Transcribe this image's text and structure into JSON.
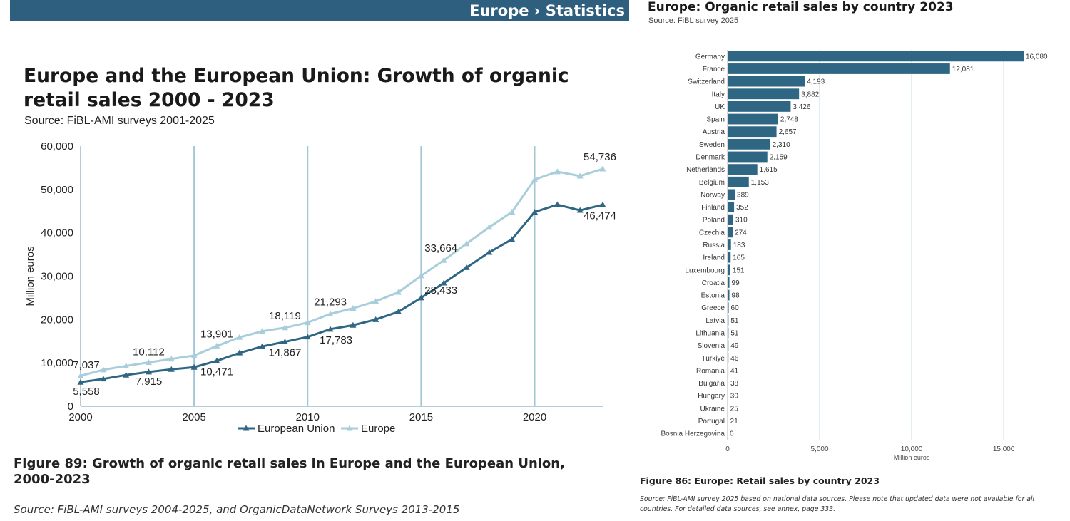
{
  "banner": {
    "text": "Europe › Statistics"
  },
  "left": {
    "title": "Europe and the European Union: Growth of organic retail sales 2000 - 2023",
    "source": "Source: FiBL-AMI surveys 2001-2025",
    "figure_caption": "Figure 89: Growth of organic retail sales in Europe and the European Union, 2000-2023",
    "footnote": "Source: FiBL-AMI surveys 2004-2025, and OrganicDataNetwork Surveys 2013-2015"
  },
  "right": {
    "title": "Europe: Organic retail sales by country 2023",
    "source": "Source: FiBL survey 2025",
    "figure_caption": "Figure 86: Europe: Retail sales by country 2023",
    "footnote": "Source: FiBL-AMI survey 2025 based on national data sources. Please note that updated data were not available for all countries. For detailed data sources, see annex, page 333."
  },
  "colors": {
    "banner": "#2e5f7e",
    "eu": "#2e6683",
    "europe": "#a9cedb",
    "bar": "#2e6683",
    "gridline": "#a3c6d4"
  },
  "chart_data": [
    {
      "type": "line",
      "x": [
        2000,
        2001,
        2002,
        2003,
        2004,
        2005,
        2006,
        2007,
        2008,
        2009,
        2010,
        2011,
        2012,
        2013,
        2014,
        2015,
        2016,
        2017,
        2018,
        2019,
        2020,
        2021,
        2022,
        2023
      ],
      "xticks": [
        2000,
        2005,
        2010,
        2015,
        2020
      ],
      "ylim": [
        0,
        60000
      ],
      "yticks": [
        "0",
        "10,000",
        "20,000",
        "30,000",
        "40,000",
        "50,000",
        "60,000"
      ],
      "ylabel": "Million euros",
      "series": [
        {
          "name": "European Union",
          "values": [
            5558,
            6300,
            7200,
            7915,
            8500,
            9000,
            10471,
            12300,
            13800,
            14867,
            16000,
            17783,
            18700,
            20000,
            21800,
            25000,
            28433,
            32000,
            35500,
            38500,
            44800,
            46500,
            45200,
            46474
          ],
          "labels": [
            [
              2000,
              "5,558"
            ],
            [
              2003,
              "7,915"
            ],
            [
              2006,
              "10,471"
            ],
            [
              2009,
              "14,867"
            ],
            [
              2011,
              "17,783"
            ],
            [
              2016,
              "28,433"
            ],
            [
              2023,
              "46,474"
            ]
          ]
        },
        {
          "name": "Europe",
          "values": [
            7037,
            8400,
            9300,
            10112,
            10900,
            11700,
            13901,
            15900,
            17300,
            18119,
            19300,
            21293,
            22600,
            24200,
            26300,
            30100,
            33664,
            37500,
            41300,
            44800,
            52300,
            54100,
            53100,
            54736
          ],
          "labels": [
            [
              2000,
              "7,037"
            ],
            [
              2003,
              "10,112"
            ],
            [
              2006,
              "13,901"
            ],
            [
              2009,
              "18,119"
            ],
            [
              2011,
              "21,293"
            ],
            [
              2016,
              "33,664"
            ],
            [
              2023,
              "54,736"
            ]
          ]
        }
      ]
    },
    {
      "type": "bar",
      "orientation": "horizontal",
      "categories": [
        "Germany",
        "France",
        "Switzerland",
        "Italy",
        "UK",
        "Spain",
        "Austria",
        "Sweden",
        "Denmark",
        "Netherlands",
        "Belgium",
        "Norway",
        "Finland",
        "Poland",
        "Czechia",
        "Russia",
        "Ireland",
        "Luxembourg",
        "Croatia",
        "Estonia",
        "Greece",
        "Latvia",
        "Lithuania",
        "Slovenia",
        "Türkiye",
        "Romania",
        "Bulgaria",
        "Hungary",
        "Ukraine",
        "Portugal",
        "Bosnia Herzegovina"
      ],
      "values": [
        16080,
        12081,
        4193,
        3882,
        3426,
        2748,
        2657,
        2310,
        2159,
        1615,
        1153,
        389,
        352,
        310,
        274,
        183,
        165,
        151,
        99,
        98,
        60,
        51,
        51,
        49,
        46,
        41,
        38,
        30,
        25,
        21,
        0
      ],
      "value_labels": [
        "16,080",
        "12,081",
        "4,193",
        "3,882",
        "3,426",
        "2,748",
        "2,657",
        "2,310",
        "2,159",
        "1,615",
        "1,153",
        "389",
        "352",
        "310",
        "274",
        "183",
        "165",
        "151",
        "99",
        "98",
        "60",
        "51",
        "51",
        "49",
        "46",
        "41",
        "38",
        "30",
        "25",
        "21",
        "0"
      ],
      "xlim": [
        0,
        16080
      ],
      "xticks": [
        "0",
        "5,000",
        "10,000",
        "15,000"
      ],
      "xlabel": "Million euros"
    }
  ]
}
